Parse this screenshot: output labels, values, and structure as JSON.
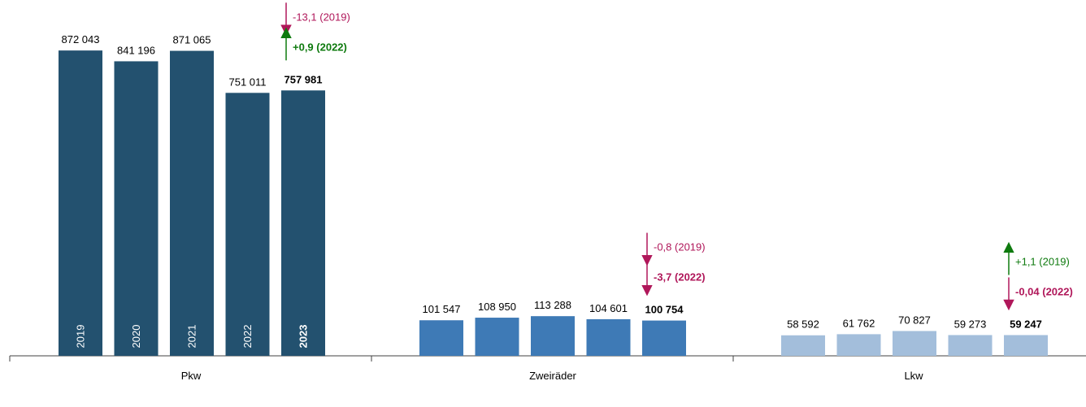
{
  "chart_data": {
    "type": "bar",
    "groups": [
      {
        "category": "Pkw",
        "color": "#23516F",
        "bars": [
          {
            "year": "2019",
            "value": 872043,
            "label": "872 043"
          },
          {
            "year": "2020",
            "value": 841196,
            "label": "841 196"
          },
          {
            "year": "2021",
            "value": 871065,
            "label": "871 065"
          },
          {
            "year": "2022",
            "value": 751011,
            "label": "751 011"
          },
          {
            "year": "2023",
            "value": 757981,
            "label": "757 981",
            "highlight": true
          }
        ],
        "changes": [
          {
            "text": "-13,1 (2019)",
            "direction": "down",
            "color": "#B0175A",
            "bold": false
          },
          {
            "text": "+0,9 (2022)",
            "direction": "up",
            "color": "#0E7A0E",
            "bold": true
          }
        ]
      },
      {
        "category": "Zweiräder",
        "color": "#3E7AB6",
        "bars": [
          {
            "year": "2019",
            "value": 101547,
            "label": "101 547"
          },
          {
            "year": "2020",
            "value": 108950,
            "label": "108 950"
          },
          {
            "year": "2021",
            "value": 113288,
            "label": "113 288"
          },
          {
            "year": "2022",
            "value": 104601,
            "label": "104 601"
          },
          {
            "year": "2023",
            "value": 100754,
            "label": "100 754",
            "highlight": true
          }
        ],
        "changes": [
          {
            "text": "-0,8 (2019)",
            "direction": "down",
            "color": "#B0175A",
            "bold": false
          },
          {
            "text": "-3,7 (2022)",
            "direction": "down",
            "color": "#B0175A",
            "bold": true
          }
        ]
      },
      {
        "category": "Lkw",
        "color": "#A3BEDB",
        "bars": [
          {
            "year": "2019",
            "value": 58592,
            "label": "58 592"
          },
          {
            "year": "2020",
            "value": 61762,
            "label": "61 762"
          },
          {
            "year": "2021",
            "value": 70827,
            "label": "70 827"
          },
          {
            "year": "2022",
            "value": 59273,
            "label": "59 273"
          },
          {
            "year": "2023",
            "value": 59247,
            "label": "59 247",
            "highlight": true
          }
        ],
        "changes": [
          {
            "text": "+1,1 (2019)",
            "direction": "up",
            "color": "#0E7A0E",
            "bold": false
          },
          {
            "text": "-0,04 (2022)",
            "direction": "down",
            "color": "#B0175A",
            "bold": true
          }
        ]
      }
    ],
    "show_year_labels_in": "Pkw",
    "ylim": [
      0,
      900000
    ],
    "grid": false,
    "legend": "none"
  }
}
